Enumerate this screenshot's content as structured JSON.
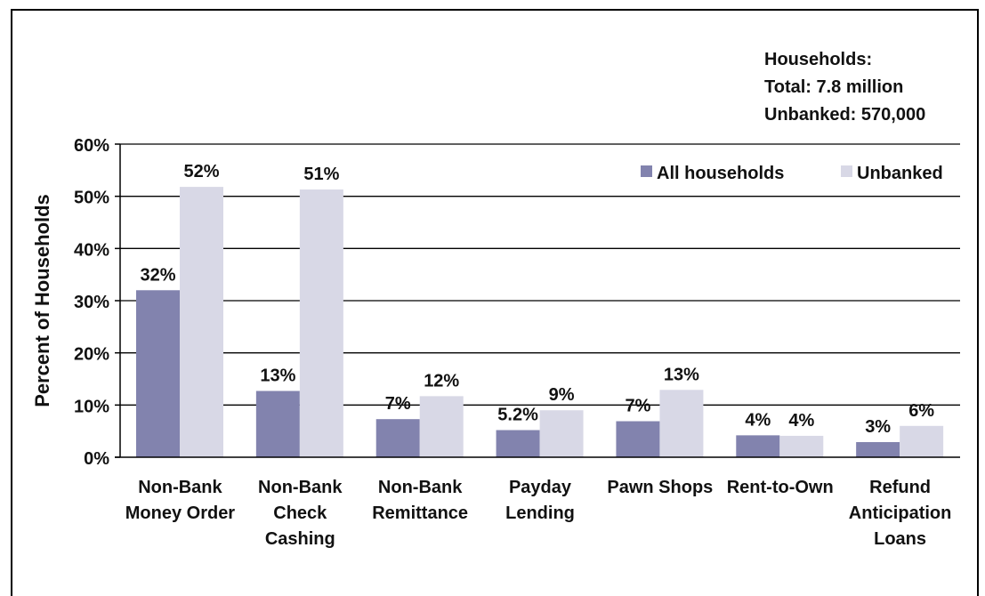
{
  "note": {
    "line1": "Households:",
    "line2": "Total: 7.8 million",
    "line3": "Unbanked: 570,000"
  },
  "chart_data": {
    "type": "bar",
    "title": "",
    "xlabel": "",
    "ylabel": "Percent of Households",
    "ylim": [
      0,
      60
    ],
    "yticks": [
      "0%",
      "10%",
      "20%",
      "30%",
      "40%",
      "50%",
      "60%"
    ],
    "grid": true,
    "legend_position": "top-right",
    "categories": [
      [
        "Non-Bank",
        "Money Order"
      ],
      [
        "Non-Bank",
        "Check",
        "Cashing"
      ],
      [
        "Non-Bank",
        "Remittance"
      ],
      [
        "Payday",
        "Lending"
      ],
      [
        "Pawn Shops"
      ],
      [
        "Rent-to-Own"
      ],
      [
        "Refund",
        "Anticipation",
        "Loans"
      ]
    ],
    "series": [
      {
        "name": "All households",
        "color": "#8283ae",
        "values": [
          32,
          12.7,
          7.3,
          5.2,
          6.9,
          4.2,
          2.9
        ],
        "labels": [
          "32%",
          "13%",
          "7%",
          "5.2%",
          "7%",
          "4%",
          "3%"
        ]
      },
      {
        "name": "Unbanked",
        "color": "#d8d8e6",
        "values": [
          51.8,
          51.3,
          11.7,
          9,
          12.9,
          4.1,
          6
        ],
        "labels": [
          "52%",
          "51%",
          "12%",
          "9%",
          "13%",
          "4%",
          "6%"
        ]
      }
    ]
  }
}
